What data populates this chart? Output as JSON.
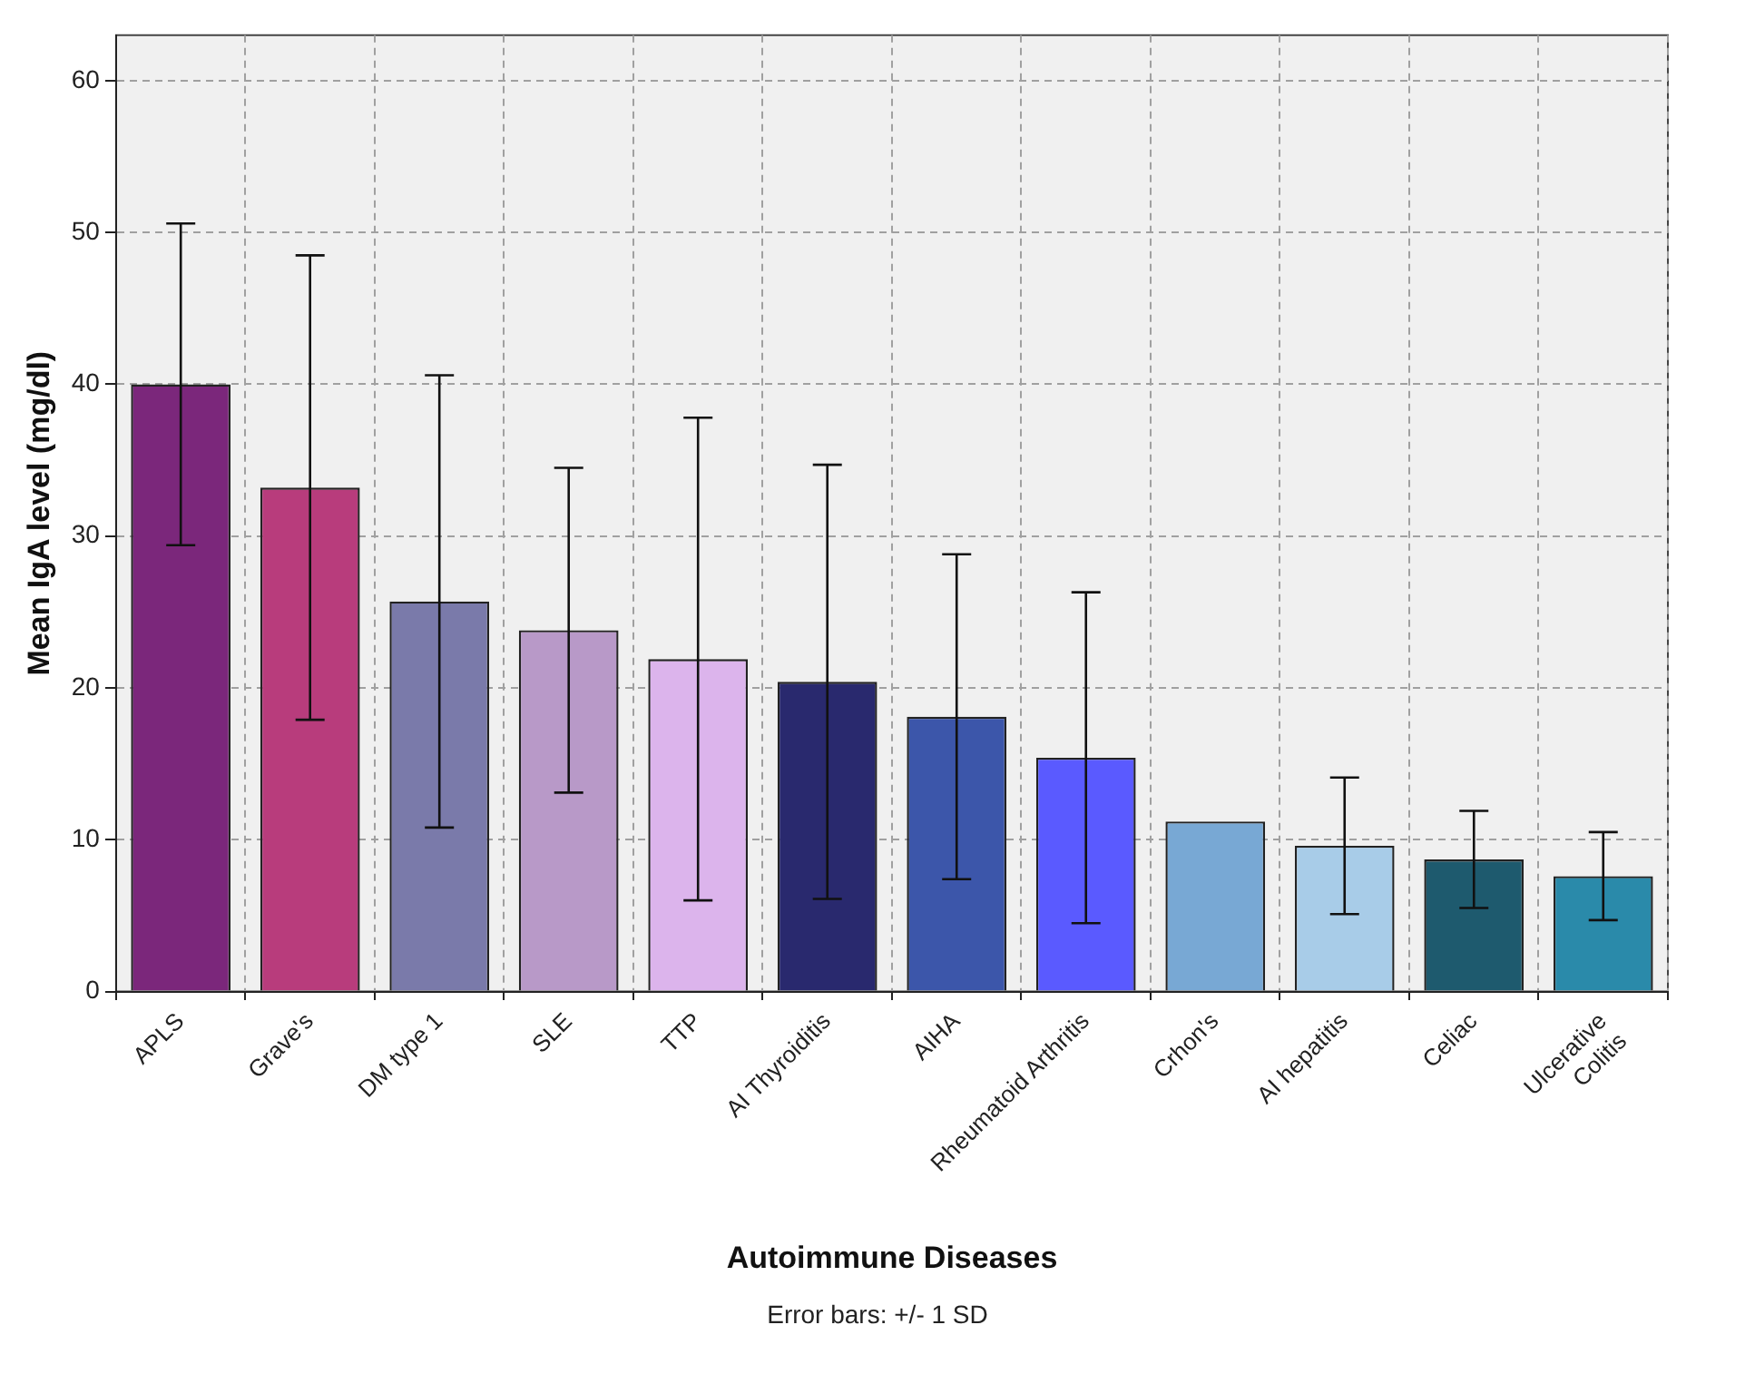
{
  "chart_data": {
    "type": "bar",
    "xlabel": "Autoimmune Diseases",
    "ylabel": "Mean IgA level (mg/dl)",
    "categories": [
      "APLS",
      "Grave's",
      "DM type 1",
      "SLE",
      "TTP",
      "AI Thyroiditis",
      "AIHA",
      "Rheumatoid Arthritis",
      "Crhon's",
      "AI hepatitis",
      "Celiac",
      "Ulcerative\nColitis"
    ],
    "values": [
      40.0,
      33.2,
      25.7,
      23.8,
      21.9,
      20.4,
      18.1,
      15.4,
      11.2,
      9.6,
      8.7,
      7.6
    ],
    "errors": [
      10.6,
      15.3,
      14.9,
      10.7,
      15.9,
      14.3,
      10.7,
      10.9,
      null,
      4.5,
      3.2,
      2.9
    ],
    "colors": [
      "#7b277b",
      "#b83c7c",
      "#7a7aaa",
      "#b899c8",
      "#dcb4ec",
      "#29296e",
      "#3c56aa",
      "#5a5aff",
      "#78a8d4",
      "#a8cce8",
      "#1e5a6e",
      "#2a8aaa"
    ],
    "ylim": [
      0,
      63
    ],
    "yticks": [
      0,
      10,
      20,
      30,
      40,
      50,
      60
    ],
    "grid": true,
    "legend": false,
    "annotations": [
      "Error bars: +/- 1 SD"
    ]
  }
}
